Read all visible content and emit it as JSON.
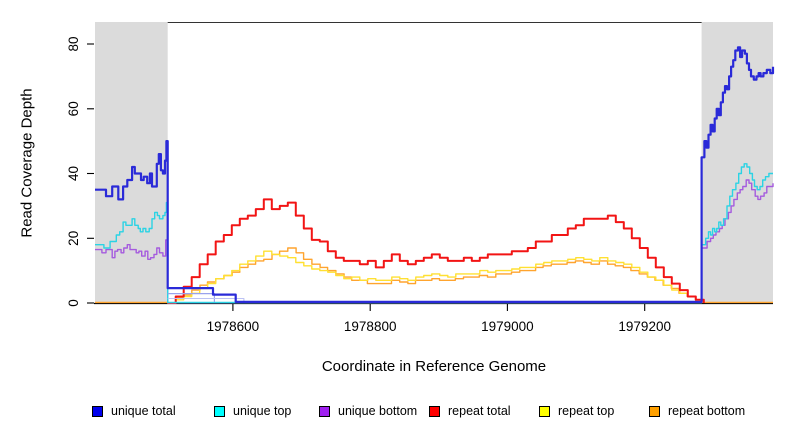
{
  "chart_data": {
    "type": "line",
    "title": "",
    "xlabel": "Coordinate in Reference Genome",
    "ylabel": "Read Coverage Depth",
    "x_range": [
      1978399,
      1979387
    ],
    "y_range": [
      0,
      86.8
    ],
    "x_ticks": [
      1978600,
      1978800,
      1979000,
      1979200
    ],
    "y_ticks": [
      0,
      20,
      40,
      60,
      80
    ],
    "grid": false,
    "legend_position": "bottom",
    "background_shading": {
      "color": "#DBDBDB",
      "regions": [
        [
          1978399,
          1978505
        ],
        [
          1979283,
          1979387
        ]
      ]
    },
    "legend": [
      {
        "label": "unique total",
        "color": "#0000EE"
      },
      {
        "label": "unique top",
        "color": "#00FFFF"
      },
      {
        "label": "unique bottom",
        "color": "#A020F0"
      },
      {
        "label": "repeat total",
        "color": "#FF0000"
      },
      {
        "label": "repeat top",
        "color": "#FFFF00"
      },
      {
        "label": "repeat bottom",
        "color": "#FFA000"
      }
    ],
    "series": [
      {
        "name": "repeat bottom",
        "color": "#FFA42E",
        "width": 1.4,
        "points": [
          [
            1978399,
            0.2
          ],
          [
            1978505,
            0.2
          ],
          [
            1978505,
            0
          ],
          [
            1978517,
            1.5
          ],
          [
            1978528,
            2.5
          ],
          [
            1978540,
            4
          ],
          [
            1978552,
            5.5
          ],
          [
            1978563,
            6.5
          ],
          [
            1978575,
            7.5
          ],
          [
            1978587,
            8.5
          ],
          [
            1978599,
            9.5
          ],
          [
            1978610,
            11
          ],
          [
            1978622,
            12
          ],
          [
            1978633,
            13
          ],
          [
            1978645,
            13.5
          ],
          [
            1978657,
            15
          ],
          [
            1978668,
            16
          ],
          [
            1978680,
            17
          ],
          [
            1978692,
            15.5
          ],
          [
            1978703,
            13.5
          ],
          [
            1978715,
            12
          ],
          [
            1978727,
            11
          ],
          [
            1978738,
            10
          ],
          [
            1978750,
            9
          ],
          [
            1978762,
            8
          ],
          [
            1978773,
            7
          ],
          [
            1978785,
            7
          ],
          [
            1978796,
            6
          ],
          [
            1978808,
            6
          ],
          [
            1978820,
            6
          ],
          [
            1978831,
            7
          ],
          [
            1978843,
            6.5
          ],
          [
            1978855,
            6
          ],
          [
            1978866,
            7
          ],
          [
            1978878,
            7
          ],
          [
            1978890,
            7.5
          ],
          [
            1978901,
            7
          ],
          [
            1978913,
            7
          ],
          [
            1978924,
            7.5
          ],
          [
            1978936,
            8
          ],
          [
            1978948,
            8
          ],
          [
            1978959,
            8.5
          ],
          [
            1978971,
            8
          ],
          [
            1978983,
            9
          ],
          [
            1978994,
            9
          ],
          [
            1979006,
            9.5
          ],
          [
            1979018,
            10
          ],
          [
            1979029,
            10
          ],
          [
            1979041,
            11
          ],
          [
            1979052,
            11.5
          ],
          [
            1979064,
            12
          ],
          [
            1979076,
            12
          ],
          [
            1979087,
            12.5
          ],
          [
            1979099,
            13
          ],
          [
            1979111,
            12.5
          ],
          [
            1979122,
            12
          ],
          [
            1979134,
            13
          ],
          [
            1979146,
            12
          ],
          [
            1979157,
            11.5
          ],
          [
            1979169,
            11
          ],
          [
            1979180,
            10
          ],
          [
            1979192,
            9
          ],
          [
            1979204,
            8
          ],
          [
            1979215,
            7
          ],
          [
            1979227,
            5.5
          ],
          [
            1979239,
            4.5
          ],
          [
            1979250,
            3
          ],
          [
            1979262,
            2
          ],
          [
            1979274,
            1
          ],
          [
            1979284,
            0.2
          ],
          [
            1979387,
            0.2
          ]
        ]
      },
      {
        "name": "repeat top",
        "color": "#FFE032",
        "width": 1.4,
        "x_start": 1978505,
        "x_step": 11.66,
        "values": [
          0,
          1,
          2,
          3,
          4.5,
          6,
          7.5,
          8.5,
          10,
          12,
          13,
          14.5,
          16,
          15,
          14.5,
          14,
          12.5,
          11.5,
          10.5,
          10,
          9.5,
          8.5,
          7.5,
          8,
          7,
          7.5,
          7,
          7,
          8,
          7.5,
          7,
          8,
          8.5,
          9,
          8.5,
          8,
          9,
          9,
          9,
          10,
          9.5,
          10,
          10,
          10.5,
          11,
          11,
          12,
          12.5,
          13,
          13,
          13.5,
          14,
          13.5,
          13,
          14,
          13,
          12.5,
          12,
          11,
          9.5,
          8,
          7,
          5.5,
          4,
          3,
          2,
          0.5,
          0
        ]
      },
      {
        "name": "repeat total",
        "color": "#F21414",
        "width": 2,
        "x_start": 1978505,
        "x_step": 11.66,
        "values": [
          0,
          2,
          5,
          8,
          12,
          15,
          19,
          21,
          24,
          26,
          27,
          29,
          32,
          29,
          30,
          31,
          27,
          23,
          19.5,
          19,
          16,
          14,
          13,
          13,
          12,
          13,
          11,
          13,
          15,
          13,
          12,
          13,
          14,
          15,
          14,
          13,
          13,
          14,
          13,
          14,
          15,
          15,
          15,
          16,
          16,
          17,
          19,
          19,
          21,
          21,
          23,
          24,
          26,
          26,
          26,
          27,
          25,
          23,
          20,
          17,
          14,
          11,
          8,
          6,
          4,
          2,
          1,
          0
        ]
      },
      {
        "name": "unique bottom",
        "color": "#A55BDE",
        "width": 1.4,
        "points": [
          [
            1978399,
            16.5
          ],
          [
            1978405,
            16.5
          ],
          [
            1978409,
            15.5
          ],
          [
            1978415,
            16.5
          ],
          [
            1978419,
            16.5
          ],
          [
            1978424,
            14
          ],
          [
            1978428,
            16
          ],
          [
            1978432,
            16.5
          ],
          [
            1978437,
            15.5
          ],
          [
            1978441,
            17
          ],
          [
            1978446,
            18
          ],
          [
            1978450,
            16.5
          ],
          [
            1978454,
            16.5
          ],
          [
            1978459,
            15.5
          ],
          [
            1978463,
            16
          ],
          [
            1978467,
            14.5
          ],
          [
            1978472,
            16
          ],
          [
            1978476,
            13.5
          ],
          [
            1978480,
            14
          ],
          [
            1978485,
            15
          ],
          [
            1978489,
            17
          ],
          [
            1978493,
            15.5
          ],
          [
            1978498,
            14.5
          ],
          [
            1978502,
            19.5
          ],
          [
            1978505,
            19.5
          ],
          [
            1978505,
            0.1
          ],
          [
            1979283,
            0.1
          ],
          [
            1979283,
            17
          ],
          [
            1979287,
            17
          ],
          [
            1979291,
            19
          ],
          [
            1979296,
            20
          ],
          [
            1979300,
            21
          ],
          [
            1979304,
            22
          ],
          [
            1979309,
            23
          ],
          [
            1979313,
            24
          ],
          [
            1979317,
            26
          ],
          [
            1979322,
            28
          ],
          [
            1979326,
            30
          ],
          [
            1979330,
            32
          ],
          [
            1979335,
            34
          ],
          [
            1979339,
            35
          ],
          [
            1979343,
            36
          ],
          [
            1979348,
            38
          ],
          [
            1979352,
            37
          ],
          [
            1979356,
            35
          ],
          [
            1979361,
            33
          ],
          [
            1979365,
            32
          ],
          [
            1979369,
            33
          ],
          [
            1979374,
            34
          ],
          [
            1979378,
            36
          ],
          [
            1979383,
            36
          ],
          [
            1979387,
            37
          ]
        ]
      },
      {
        "name": "unique top",
        "color": "#2BD3E4",
        "width": 1.4,
        "points": [
          [
            1978399,
            18
          ],
          [
            1978406,
            18
          ],
          [
            1978412,
            17
          ],
          [
            1978418,
            17
          ],
          [
            1978421,
            19
          ],
          [
            1978427,
            19
          ],
          [
            1978430,
            21
          ],
          [
            1978435,
            22
          ],
          [
            1978440,
            25
          ],
          [
            1978444,
            24
          ],
          [
            1978448,
            24
          ],
          [
            1978453,
            26
          ],
          [
            1978457,
            24
          ],
          [
            1978462,
            23
          ],
          [
            1978465,
            22
          ],
          [
            1978469,
            23
          ],
          [
            1978473,
            22
          ],
          [
            1978478,
            23
          ],
          [
            1978482,
            26
          ],
          [
            1978486,
            28
          ],
          [
            1978490,
            27
          ],
          [
            1978493,
            26
          ],
          [
            1978498,
            27
          ],
          [
            1978501,
            28
          ],
          [
            1978503,
            31
          ],
          [
            1978505,
            31
          ],
          [
            1978505,
            0.15
          ],
          [
            1979283,
            0.15
          ],
          [
            1979283,
            18
          ],
          [
            1979286,
            18
          ],
          [
            1979289,
            20
          ],
          [
            1979293,
            22
          ],
          [
            1979296,
            21
          ],
          [
            1979299,
            23
          ],
          [
            1979302,
            22
          ],
          [
            1979305,
            23
          ],
          [
            1979308,
            25
          ],
          [
            1979311,
            24
          ],
          [
            1979315,
            26
          ],
          [
            1979320,
            30
          ],
          [
            1979324,
            33
          ],
          [
            1979328,
            35
          ],
          [
            1979333,
            37
          ],
          [
            1979337,
            40
          ],
          [
            1979341,
            42
          ],
          [
            1979345,
            43
          ],
          [
            1979349,
            42
          ],
          [
            1979353,
            40
          ],
          [
            1979357,
            38
          ],
          [
            1979360,
            36
          ],
          [
            1979364,
            35
          ],
          [
            1979368,
            36
          ],
          [
            1979372,
            38
          ],
          [
            1979376,
            39
          ],
          [
            1979381,
            40
          ],
          [
            1979387,
            40
          ]
        ]
      },
      {
        "name": "unique total faint step 1",
        "color": "#9AA2EC",
        "width": 1.2,
        "points": [
          [
            1978505,
            2.9
          ],
          [
            1978573,
            2.9
          ],
          [
            1978573,
            0.35
          ]
        ]
      },
      {
        "name": "unique total faint step 2",
        "color": "#BCC2F4",
        "width": 1.1,
        "points": [
          [
            1978505,
            1.4
          ],
          [
            1978616,
            1.4
          ],
          [
            1978616,
            0.35
          ]
        ]
      },
      {
        "name": "unique total",
        "color": "#2A2AD8",
        "width": 2.2,
        "points": [
          [
            1978399,
            35
          ],
          [
            1978411,
            35
          ],
          [
            1978415,
            33
          ],
          [
            1978421,
            33
          ],
          [
            1978424,
            36
          ],
          [
            1978430,
            36
          ],
          [
            1978433,
            32
          ],
          [
            1978437,
            32
          ],
          [
            1978440,
            36
          ],
          [
            1978446,
            38
          ],
          [
            1978450,
            38
          ],
          [
            1978453,
            42
          ],
          [
            1978457,
            40
          ],
          [
            1978463,
            40
          ],
          [
            1978466,
            38
          ],
          [
            1978470,
            39
          ],
          [
            1978475,
            37
          ],
          [
            1978479,
            40
          ],
          [
            1978482,
            36
          ],
          [
            1978486,
            36
          ],
          [
            1978489,
            43
          ],
          [
            1978492,
            46
          ],
          [
            1978495,
            41
          ],
          [
            1978498,
            40
          ],
          [
            1978501,
            44
          ],
          [
            1978503,
            50
          ],
          [
            1978505,
            50
          ],
          [
            1978505,
            4.6
          ],
          [
            1978571,
            4.6
          ],
          [
            1978571,
            2.6
          ],
          [
            1978604,
            2.6
          ],
          [
            1978604,
            0.35
          ],
          [
            1979283,
            0.35
          ],
          [
            1979283,
            45
          ],
          [
            1979285,
            45
          ],
          [
            1979287,
            50
          ],
          [
            1979290,
            48
          ],
          [
            1979293,
            52
          ],
          [
            1979296,
            55
          ],
          [
            1979299,
            53
          ],
          [
            1979302,
            57
          ],
          [
            1979305,
            60
          ],
          [
            1979308,
            58
          ],
          [
            1979311,
            62
          ],
          [
            1979314,
            65
          ],
          [
            1979317,
            67
          ],
          [
            1979320,
            66
          ],
          [
            1979323,
            70
          ],
          [
            1979326,
            73
          ],
          [
            1979329,
            75
          ],
          [
            1979332,
            78
          ],
          [
            1979336,
            79
          ],
          [
            1979339,
            76
          ],
          [
            1979342,
            78
          ],
          [
            1979346,
            77
          ],
          [
            1979349,
            74
          ],
          [
            1979352,
            72
          ],
          [
            1979355,
            70
          ],
          [
            1979359,
            69
          ],
          [
            1979363,
            70
          ],
          [
            1979366,
            71
          ],
          [
            1979369,
            70
          ],
          [
            1979373,
            71
          ],
          [
            1979378,
            72
          ],
          [
            1979383,
            71
          ],
          [
            1979387,
            73
          ]
        ]
      }
    ]
  }
}
